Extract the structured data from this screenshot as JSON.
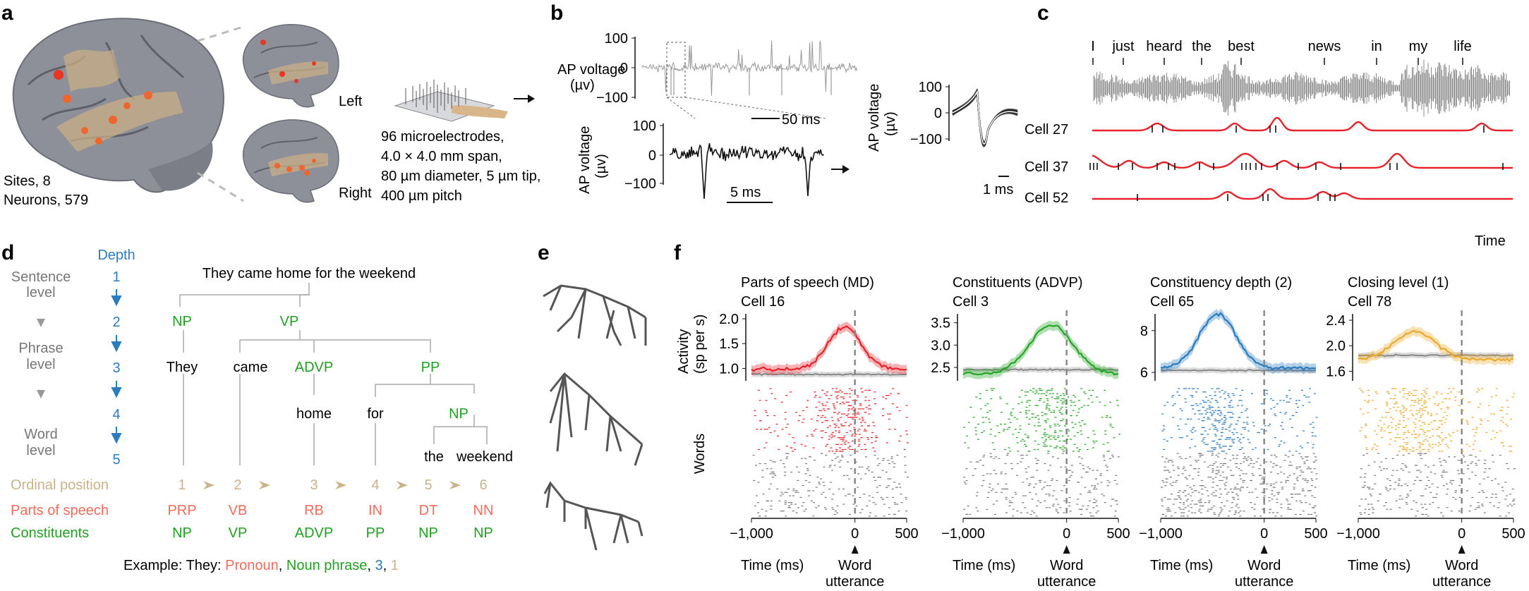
{
  "panel_letters": [
    "a",
    "b",
    "c",
    "d",
    "e",
    "f"
  ],
  "panel_a": {
    "label_left": "Left",
    "label_right": "Right",
    "sites": "Sites, 8",
    "neurons": "Neurons, 579",
    "electrode_lines": [
      "96 microelectrodes,",
      "4.0 × 4.0 mm span,",
      "80 µm diameter, 5 µm tip,",
      "400 µm pitch"
    ]
  },
  "panel_b": {
    "ylabel_top": [
      "AP voltage",
      "(µv)"
    ],
    "ylabel_mid": [
      "AP voltage",
      "(µv)"
    ],
    "ylabel_right": [
      "AP voltage",
      "(µv)"
    ],
    "top_ticks": [
      "100",
      "0",
      "−100"
    ],
    "mid_ticks": [
      "100",
      "0",
      "−100"
    ],
    "right_ticks": [
      "100",
      "0",
      "−100"
    ],
    "scale_50": "50 ms",
    "scale_5": "5 ms",
    "scale_1": "1 ms"
  },
  "panel_c": {
    "words": [
      "I",
      "just",
      "heard",
      "the",
      "best",
      "news",
      "in",
      "my",
      "life"
    ],
    "cells": [
      "Cell 27",
      "Cell 37",
      "Cell 52"
    ],
    "time_label": "Time"
  },
  "panel_d": {
    "sentence": "They came home for the weekend",
    "depth_title": "Depth",
    "depths": [
      "1",
      "2",
      "3",
      "4",
      "5"
    ],
    "levels": [
      [
        "Sentence",
        "level"
      ],
      [
        "Phrase",
        "level"
      ],
      [
        "Word",
        "level"
      ]
    ],
    "tree": {
      "np_top": "NP",
      "vp": "VP",
      "advp": "ADVP",
      "pp": "PP",
      "np_inner": "NP"
    },
    "words": [
      "They",
      "came",
      "home",
      "for",
      "the",
      "weekend"
    ],
    "rows": {
      "ordinal_label": "Ordinal position",
      "pos_label": "Parts of speech",
      "const_label": "Constituents",
      "ordinals": [
        "1",
        "2",
        "3",
        "4",
        "5",
        "6"
      ],
      "pos": [
        "PRP",
        "VB",
        "RB",
        "IN",
        "DT",
        "NN"
      ],
      "consts": [
        "NP",
        "VP",
        "ADVP",
        "PP",
        "NP",
        "NP"
      ]
    },
    "example": {
      "prefix": "Example: They: ",
      "pos": "Pronoun",
      "sep1": ", ",
      "const": "Noun phrase",
      "sep2": ", ",
      "depth": "3",
      "sep3": ", ",
      "ordinal": "1"
    }
  },
  "panel_f": {
    "ylabel": [
      "Activity",
      "(sp per s)"
    ],
    "words_label": "Words",
    "xlabel": "Time (ms)",
    "word_label": "Word",
    "utter_label": "utterance",
    "xticks": [
      "−1,000",
      "0",
      "500"
    ],
    "colors": {
      "red": "#e8222a",
      "green": "#25a525",
      "blue": "#2b7bbf",
      "orange": "#eba92a",
      "gray": "#8a8a8a",
      "tan": "#c9b38b",
      "depth_blue": "#2b7bbf",
      "pos_red": "#f26b5b",
      "const_green": "#20a020"
    },
    "panels": [
      {
        "title": "Parts of speech (MD)",
        "cell": "Cell 16",
        "yticks": [
          "2.0",
          "1.5",
          "1.0"
        ],
        "color": "#e8222a"
      },
      {
        "title": "Constituents (ADVP)",
        "cell": "Cell 3",
        "yticks": [
          "3.5",
          "3.0",
          "2.5"
        ],
        "color": "#25a525"
      },
      {
        "title": "Constituency depth (2)",
        "cell": "Cell 65",
        "yticks": [
          "8",
          "6"
        ],
        "color": "#2b7bbf"
      },
      {
        "title": "Closing level (1)",
        "cell": "Cell 78",
        "yticks": [
          "2.4",
          "2.0",
          "1.6"
        ],
        "color": "#eba92a"
      }
    ]
  }
}
